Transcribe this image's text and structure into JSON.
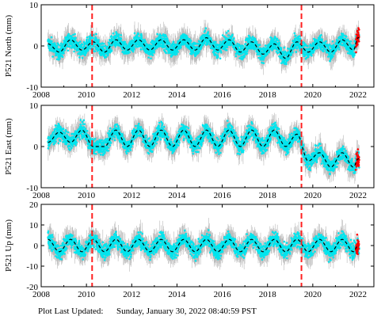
{
  "footer": {
    "label": "Plot Last Updated:",
    "value": "Sunday, January 30, 2022 08:40:59 PST"
  },
  "colors": {
    "observations": "#00e5ee",
    "error_bars": "#b8b8b8",
    "recent_points": "#ff0000",
    "model_line": "#000000",
    "event_lines": "#ff2020"
  },
  "chart_data": [
    {
      "type": "scatter",
      "ylabel": "P521 North (mm)",
      "xlim": [
        2008,
        2022.7
      ],
      "ylim": [
        -10,
        10
      ],
      "xticks": [
        2008,
        2010,
        2012,
        2014,
        2016,
        2018,
        2020,
        2022
      ],
      "yticks": [
        -10,
        0,
        10
      ],
      "event_lines_x": [
        2010.25,
        2019.5
      ],
      "series": [
        {
          "x": [
            2008.3,
            2008.8,
            2009.3,
            2009.8,
            2010.3,
            2010.8,
            2011.3,
            2011.8,
            2012.3,
            2012.8,
            2013.3,
            2013.8,
            2014.3,
            2014.8,
            2015.3,
            2015.8,
            2016.3,
            2016.8,
            2017.3,
            2017.8,
            2018.3,
            2018.8,
            2019.3,
            2019.8,
            2020.3,
            2020.8,
            2021.3,
            2021.8,
            2022.0
          ],
          "y": [
            0.5,
            -1.5,
            1.5,
            -1.0,
            1.0,
            -1.5,
            1.5,
            -1.0,
            1.5,
            -1.0,
            1.5,
            -1.0,
            1.5,
            -1.0,
            2.0,
            -1.0,
            1.5,
            -1.5,
            1.0,
            -2.0,
            0.5,
            -3.0,
            1.0,
            -1.5,
            1.0,
            -1.5,
            1.5,
            -1.0,
            2.0
          ]
        }
      ]
    },
    {
      "type": "scatter",
      "ylabel": "P521 East (mm)",
      "xlim": [
        2008,
        2022.7
      ],
      "ylim": [
        -10,
        10
      ],
      "xticks": [
        2008,
        2010,
        2012,
        2014,
        2016,
        2018,
        2020,
        2022
      ],
      "yticks": [
        -10,
        0,
        10
      ],
      "event_lines_x": [
        2010.25,
        2019.5
      ],
      "series": [
        {
          "x": [
            2008.3,
            2008.8,
            2009.3,
            2009.8,
            2010.3,
            2010.8,
            2011.3,
            2011.8,
            2012.3,
            2012.8,
            2013.3,
            2013.8,
            2014.3,
            2014.8,
            2015.3,
            2015.8,
            2016.3,
            2016.8,
            2017.3,
            2017.8,
            2018.3,
            2018.8,
            2019.3,
            2019.8,
            2020.3,
            2020.8,
            2021.3,
            2021.8,
            2022.0
          ],
          "y": [
            1.0,
            3.5,
            1.0,
            4.0,
            0.0,
            0.0,
            4.0,
            0.0,
            4.0,
            0.0,
            4.0,
            0.0,
            4.0,
            0.0,
            4.0,
            0.0,
            4.0,
            0.0,
            4.0,
            0.0,
            4.0,
            0.0,
            3.0,
            -3.5,
            -1.5,
            -5.0,
            -1.5,
            -5.0,
            -3.0
          ]
        }
      ]
    },
    {
      "type": "scatter",
      "ylabel": "P521 Up (mm)",
      "xlim": [
        2008,
        2022.7
      ],
      "ylim": [
        -20,
        20
      ],
      "xticks": [
        2008,
        2010,
        2012,
        2014,
        2016,
        2018,
        2020,
        2022
      ],
      "yticks": [
        -20,
        -10,
        0,
        10,
        20
      ],
      "event_lines_x": [
        2010.25,
        2019.5
      ],
      "series": [
        {
          "x": [
            2008.3,
            2008.8,
            2009.3,
            2009.8,
            2010.3,
            2010.8,
            2011.3,
            2011.8,
            2012.3,
            2012.8,
            2013.3,
            2013.8,
            2014.3,
            2014.8,
            2015.3,
            2015.8,
            2016.3,
            2016.8,
            2017.3,
            2017.8,
            2018.3,
            2018.8,
            2019.3,
            2019.8,
            2020.3,
            2020.8,
            2021.3,
            2021.8,
            2022.0
          ],
          "y": [
            3,
            -3,
            3,
            -3,
            3,
            -3,
            3,
            -3,
            3,
            -3,
            3,
            -3,
            3,
            -3,
            3,
            -3,
            3,
            -3,
            3,
            -3,
            3,
            -3,
            3,
            -3,
            3,
            -3,
            3,
            -3,
            0
          ]
        }
      ]
    }
  ]
}
